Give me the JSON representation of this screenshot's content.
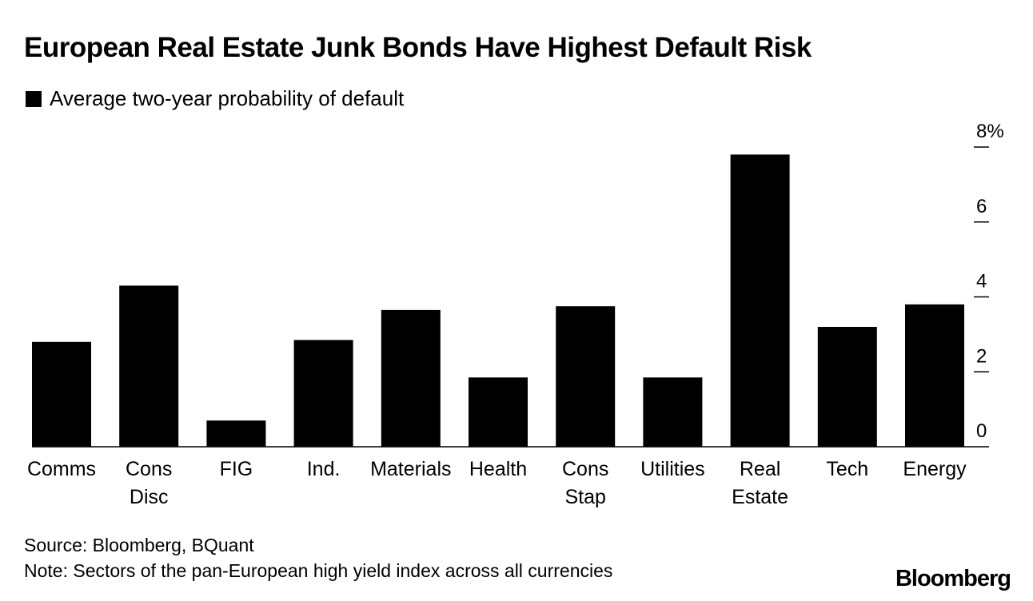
{
  "chart_data": {
    "type": "bar",
    "title": "European Real Estate Junk Bonds Have Highest Default Risk",
    "legend": [
      "Average two-year probability of default"
    ],
    "legend_position": "top-left",
    "categories": [
      [
        "Comms"
      ],
      [
        "Cons",
        "Disc"
      ],
      [
        "FIG"
      ],
      [
        "Ind."
      ],
      [
        "Materials"
      ],
      [
        "Health"
      ],
      [
        "Cons",
        "Stap"
      ],
      [
        "Utilities"
      ],
      [
        "Real",
        "Estate"
      ],
      [
        "Tech"
      ],
      [
        "Energy"
      ]
    ],
    "series": [
      {
        "name": "Average two-year probability of default",
        "values": [
          2.8,
          4.3,
          0.7,
          2.85,
          3.65,
          1.85,
          3.75,
          1.85,
          7.8,
          3.2,
          3.8
        ]
      }
    ],
    "ylim": [
      0,
      8
    ],
    "yticks": [
      0,
      2,
      4,
      6,
      8
    ],
    "ytick_labels": [
      "0",
      "2",
      "4",
      "6",
      "8%"
    ],
    "axis_side": "right",
    "xlabel": "",
    "ylabel": "",
    "grid": false
  },
  "source": "Source: Bloomberg, BQuant",
  "note": "Note: Sectors of the pan-European high yield index across all currencies",
  "brand": "Bloomberg",
  "colors": {
    "bar": "#000000",
    "background": "#ffffff"
  }
}
